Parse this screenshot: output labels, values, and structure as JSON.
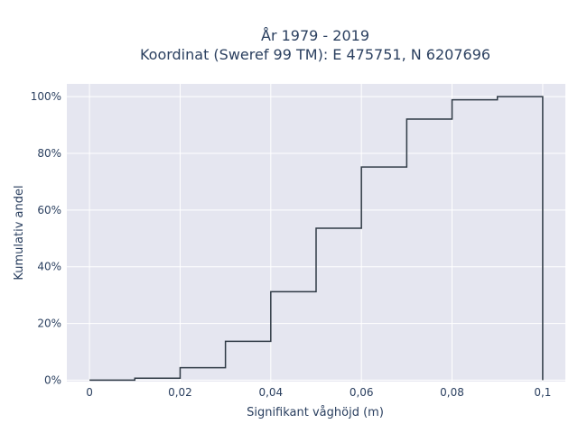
{
  "chart_data": {
    "type": "line",
    "line_shape": "step",
    "title": "År 1979 - 2019",
    "subtitle": "Koordinat (Sweref 99 TM): E 475751, N 6207696",
    "xlabel": "Signifikant våghöjd (m)",
    "ylabel": "Kumulativ andel",
    "xlim": [
      -0.005,
      0.105
    ],
    "ylim": [
      -0.005,
      1.045
    ],
    "x_ticks": [
      0,
      0.02,
      0.04,
      0.06,
      0.08,
      0.1
    ],
    "x_tick_labels": [
      "0",
      "0,02",
      "0,04",
      "0,06",
      "0,08",
      "0,1"
    ],
    "y_ticks": [
      0,
      0.2,
      0.4,
      0.6,
      0.8,
      1.0
    ],
    "y_tick_labels": [
      "0%",
      "20%",
      "40%",
      "60%",
      "80%",
      "100%"
    ],
    "grid": true,
    "plot_bgcolor": "#e5e6f0",
    "line_color": "#2f3a45",
    "x": [
      0,
      0.01,
      0.02,
      0.03,
      0.04,
      0.05,
      0.06,
      0.07,
      0.08,
      0.09,
      0.1
    ],
    "y": [
      0.0,
      0.007,
      0.044,
      0.137,
      0.312,
      0.536,
      0.752,
      0.921,
      0.989,
      1.0,
      0.0
    ]
  }
}
